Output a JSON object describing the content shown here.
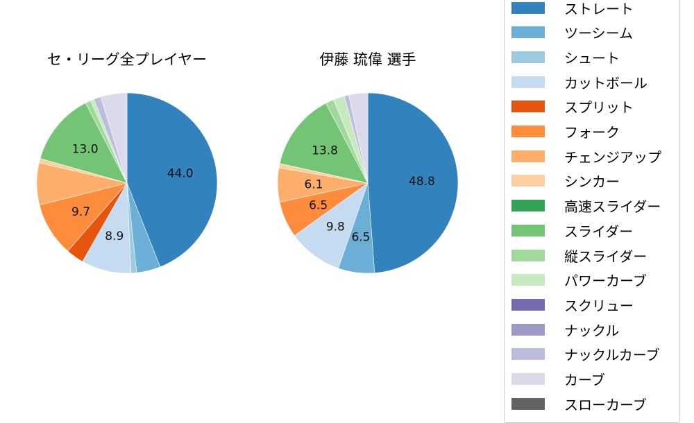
{
  "chart_data": [
    {
      "type": "pie",
      "title": "セ・リーグ全プレイヤー",
      "labels": [
        "ストレート",
        "ツーシーム",
        "シュート",
        "カットボール",
        "スプリット",
        "フォーク",
        "チェンジアップ",
        "シンカー",
        "スライダー",
        "縦スライダー",
        "パワーカーブ",
        "ナックルカーブ",
        "カーブ"
      ],
      "values": [
        44.0,
        4.3,
        1.0,
        8.9,
        3.2,
        9.7,
        7.5,
        0.8,
        13.0,
        1.0,
        0.6,
        1.3,
        4.7
      ],
      "shown_labels": [
        "44.0",
        "",
        "",
        "8.9",
        "",
        "9.7",
        "",
        "",
        "13.0",
        "",
        "",
        "",
        ""
      ]
    },
    {
      "type": "pie",
      "title": "伊藤 琉偉  選手",
      "labels": [
        "ストレート",
        "ツーシーム",
        "カットボール",
        "フォーク",
        "チェンジアップ",
        "シンカー",
        "スライダー",
        "縦スライダー",
        "パワーカーブ",
        "ナックルカーブ",
        "カーブ"
      ],
      "values": [
        48.8,
        6.5,
        9.8,
        6.5,
        6.1,
        0.8,
        13.8,
        1.5,
        2.0,
        0.8,
        3.4
      ],
      "shown_labels": [
        "48.8",
        "6.5",
        "9.8",
        "6.5",
        "6.1",
        "",
        "13.8",
        "",
        "",
        "",
        ""
      ]
    }
  ],
  "legend": [
    {
      "label": "ストレート",
      "color": "#3182bd"
    },
    {
      "label": "ツーシーム",
      "color": "#6baed6"
    },
    {
      "label": "シュート",
      "color": "#9ecae1"
    },
    {
      "label": "カットボール",
      "color": "#c6dbef"
    },
    {
      "label": "スプリット",
      "color": "#e6550d"
    },
    {
      "label": "フォーク",
      "color": "#fd8d3c"
    },
    {
      "label": "チェンジアップ",
      "color": "#fdae6b"
    },
    {
      "label": "シンカー",
      "color": "#fdd0a2"
    },
    {
      "label": "高速スライダー",
      "color": "#31a354"
    },
    {
      "label": "スライダー",
      "color": "#74c476"
    },
    {
      "label": "縦スライダー",
      "color": "#a1d99b"
    },
    {
      "label": "パワーカーブ",
      "color": "#c7e9c0"
    },
    {
      "label": "スクリュー",
      "color": "#756bb1"
    },
    {
      "label": "ナックル",
      "color": "#9e9ac8"
    },
    {
      "label": "ナックルカーブ",
      "color": "#bcbddc"
    },
    {
      "label": "カーブ",
      "color": "#dadaeb"
    },
    {
      "label": "スローカーブ",
      "color": "#636363"
    }
  ]
}
